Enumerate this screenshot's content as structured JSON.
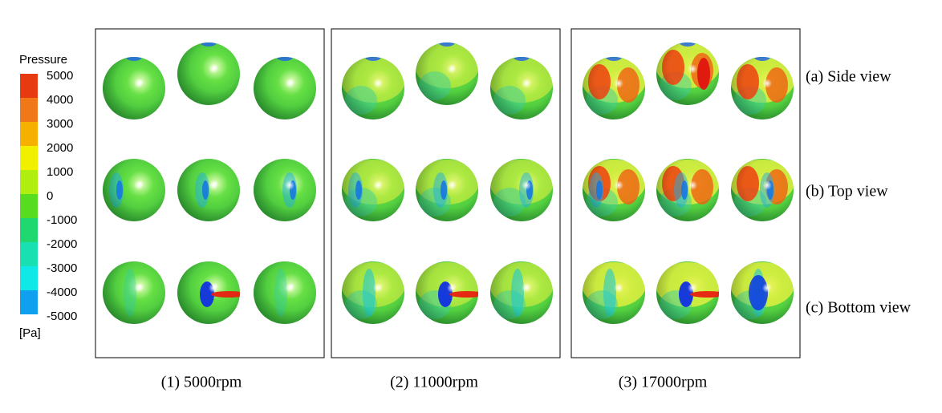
{
  "colorbar": {
    "title": "Pressure",
    "ticks": [
      "5000",
      "4000",
      "3000",
      "2000",
      "1000",
      "0",
      "-1000",
      "-2000",
      "-3000",
      "-4000",
      "-5000"
    ],
    "unit": "[Pa]"
  },
  "rows": [
    "(a) Side view",
    "(b) Top view",
    "(c) Bottom view"
  ],
  "columns": [
    "(1) 5000rpm",
    "(2) 11000rpm",
    "(3) 17000rpm"
  ]
}
